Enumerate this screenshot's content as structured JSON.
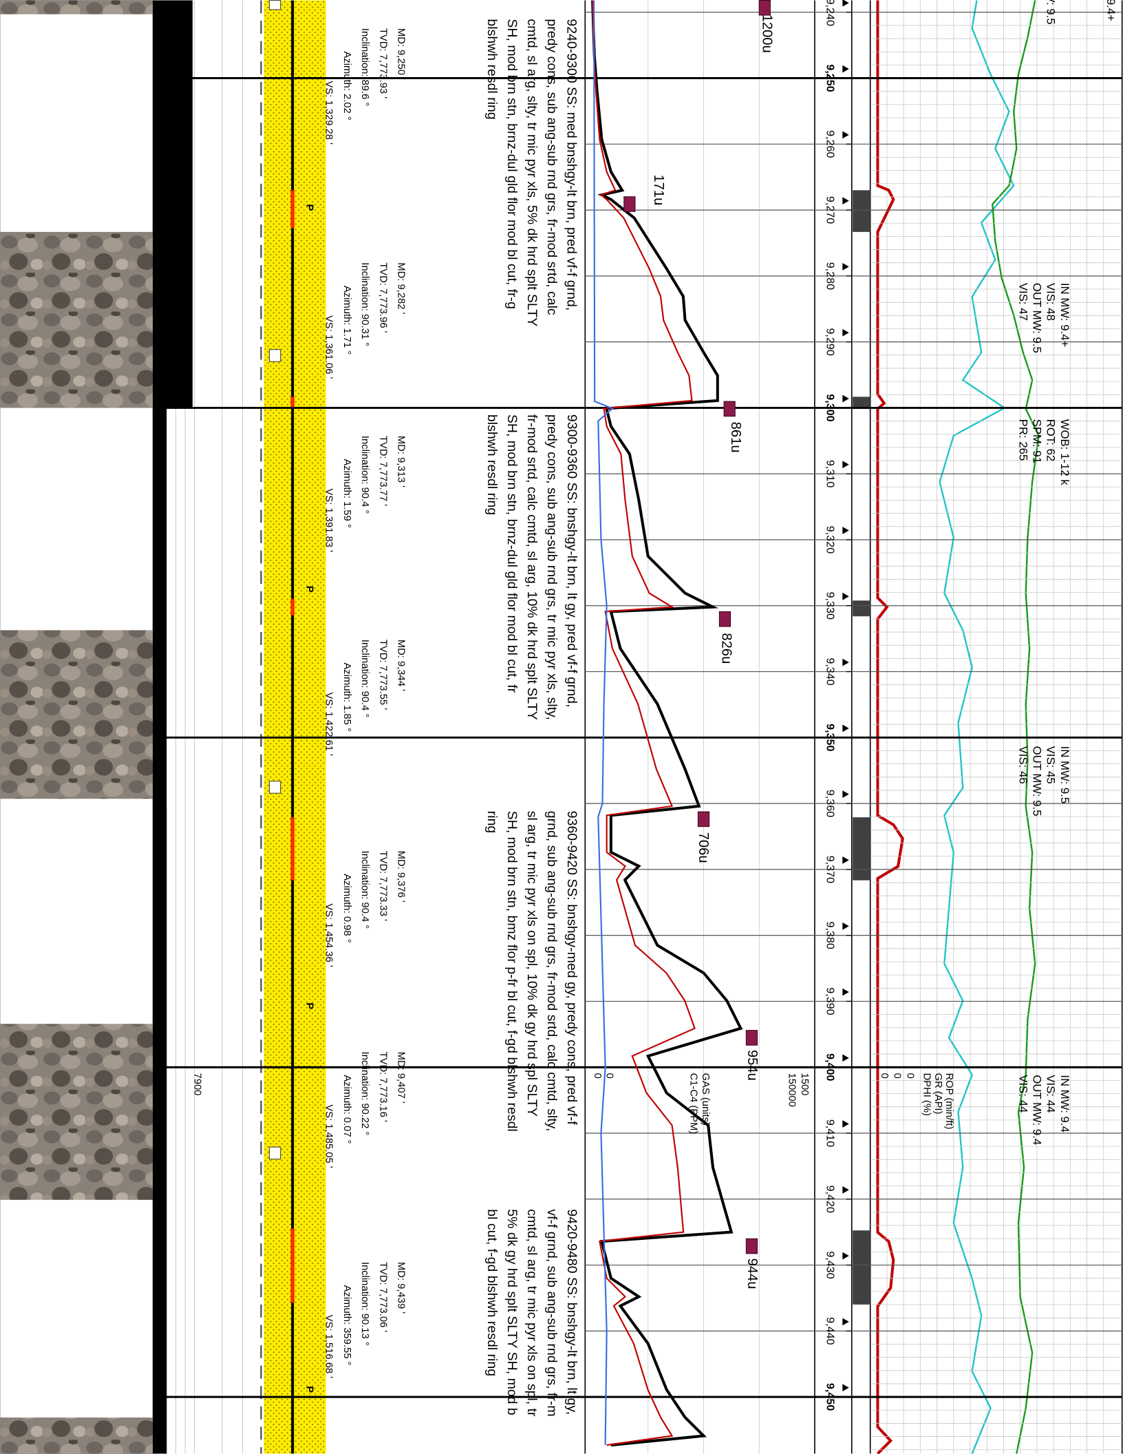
{
  "depth_track": {
    "ylim": [
      9238.2,
      9458.6
    ],
    "ticks": [
      {
        "value": 9240,
        "label": "9,240"
      },
      {
        "value": 9250,
        "label": "9,250"
      },
      {
        "value": 9260,
        "label": "9,260"
      },
      {
        "value": 9270,
        "label": "9,270"
      },
      {
        "value": 9280,
        "label": "9,280"
      },
      {
        "value": 9290,
        "label": "9,290"
      },
      {
        "value": 9300,
        "label": "9,300"
      },
      {
        "value": 9310,
        "label": "9,310"
      },
      {
        "value": 9320,
        "label": "9,320"
      },
      {
        "value": 9330,
        "label": "9,330"
      },
      {
        "value": 9340,
        "label": "9,340"
      },
      {
        "value": 9350,
        "label": "9,350"
      },
      {
        "value": 9360,
        "label": "9,360"
      },
      {
        "value": 9370,
        "label": "9,370"
      },
      {
        "value": 9380,
        "label": "9,380"
      },
      {
        "value": 9390,
        "label": "9,390"
      },
      {
        "value": 9400,
        "label": "9,400"
      },
      {
        "value": 9410,
        "label": "9,410"
      },
      {
        "value": 9420,
        "label": "9,420"
      },
      {
        "value": 9430,
        "label": "9,430"
      },
      {
        "value": 9440,
        "label": "9,440"
      },
      {
        "value": 9450,
        "label": "9,450"
      }
    ]
  },
  "core_label": "7900",
  "surveys": [
    [
      "MD: 9,250 '",
      "TVD: 7,773.93 '",
      "Inclination: 89.6 °",
      "Azimuth: 2.02 °",
      "VS: 1,329.28 '"
    ],
    [
      "MD: 9,282 '",
      "TVD: 7,773.96 '",
      "Inclination: 90.31 °",
      "Azimuth: 1.71 °",
      "VS: 1,361.06 '"
    ],
    [
      "MD: 9,313 '",
      "TVD: 7,773.77 '",
      "Inclination: 90.4 °",
      "Azimuth: 1.59 °",
      "VS: 1,391.83 '"
    ],
    [
      "MD: 9,344 '",
      "TVD: 7,773.55 '",
      "Inclination: 90.4 °",
      "Azimuth: 1.85 °",
      "VS: 1,422.61 '"
    ],
    [
      "MD: 9,376 '",
      "TVD: 7,773.33 '",
      "Inclination: 90.4 °",
      "Azimuth: 0.98 °",
      "VS: 1,454.36 '"
    ],
    [
      "MD: 9,407 '",
      "TVD: 7,773.16 '",
      "Inclination: 90.22 °",
      "Azimuth: 0.07 °",
      "VS: 1,485.05 '"
    ],
    [
      "MD: 9,439 '",
      "TVD: 7,773.06 '",
      "Inclination: 90.13 °",
      "Azimuth: 359.55 °",
      "VS: 1,516.68 '"
    ]
  ],
  "descriptions": [
    [
      "9240-9300 SS: med bnshgy-lt brn, pred vf-f grnd,",
      "predy cons, sub ang-sub rnd grs, fr-mod srtd, calc",
      "cmtd, sl arg, slty, tr mic pyr xls, 5% dk hrd splt SLTY",
      "SH, mod brn stn, brnz-dul gld flor mod bl cut, fr-g",
      "blshwh resdl ring"
    ],
    [
      "9300-9360 SS: bnshgy-lt brn, lt gy, pred vf-f grnd,",
      "predy cons, sub ang-sub rnd grs, tr mic pyr xls, slty,",
      "fr-mod srtd, calc cmtd, sl arg, 10% dk hrd splt SLTY",
      "SH, mod brn stn, brnz-dul gld flor mod bl cut, fr",
      "blshwh resdl ring"
    ],
    [
      "9360-9420 SS: bnshgy-med gy, predy cons, pred vf-f",
      "grnd, sub ang-sub rnd grs, fr-mod srtd, calc cmtd, slty,",
      "sl arg, tr mic pyr xls on spl, 10% dk gy hrd spl SLTY",
      "SH, mod brn stn, bmz flor p-fr bl cut, f-gd blshwh resdl",
      "ring"
    ],
    [
      "9420-9480 SS: bnshgy-lt brn, lt gy,",
      "vf-f grnd, sub ang-sub rnd grs, fr-m",
      "cmtd, sl arg, tr mic pyr xls on spl, tr",
      "5% dk gy hrd splt SLTY SH, mod b",
      "bl cut, f-gd blshwh resdl ring"
    ]
  ],
  "mud_reports": [
    [
      "IN MW: 9.4+",
      "VIS: 48",
      "OUT MW: 9.5",
      "VIS: 47"
    ],
    [
      "WOB: 1-12 k",
      "ROT: 62",
      "SPM: 91",
      "PR: 265"
    ],
    [
      "IN MW: 9.5",
      "VIS: 45",
      "OUT MW: 9.5",
      "VIS: 46"
    ],
    [
      "IN MW: 9.4",
      "VIS: 44",
      "OUT MW: 9.4",
      "VIS: 44"
    ]
  ],
  "mud_fragments": [
    "9.4+",
    "V: 9.5"
  ],
  "gas_track": {
    "type": "line",
    "xlim": [
      0,
      1500
    ],
    "x2lim": [
      0,
      150000
    ],
    "series": [
      {
        "name": "GAS (units)",
        "color": "#000000",
        "x": [
          9238.2,
          9246.6,
          9252.2,
          9259.3,
          9264.2,
          9267.0,
          9267.7,
          9268.4,
          9271.2,
          9278.9,
          9283.1,
          9286.7,
          9291.6,
          9295.1,
          9298.9,
          9300.1,
          9302.8,
          9307.0,
          9314.0,
          9322.5,
          9328.1,
          9330.2,
          9330.9,
          9336.5,
          9344.9,
          9354.8,
          9360.4,
          9361.8,
          9367.4,
          9369.5,
          9371.6,
          9381.5,
          9385.7,
          9389.9,
          9394.1,
          9398.3,
          9403.9,
          9408.8,
          9415.2,
          9425.0,
          9426.4,
          9432.0,
          9434.8,
          9436.2,
          9441.9,
          9448.9,
          9453.1,
          9455.9,
          9457.3
        ],
        "values": [
          0,
          13,
          33,
          65,
          130,
          209,
          65,
          130,
          294,
          522,
          639,
          652,
          783,
          881,
          881,
          98,
          130,
          261,
          326,
          391,
          652,
          848,
          130,
          196,
          457,
          652,
          750,
          130,
          130,
          326,
          228,
          457,
          783,
          946,
          1044,
          391,
          522,
          815,
          848,
          978,
          65,
          130,
          326,
          196,
          391,
          522,
          652,
          783,
          130
        ]
      },
      {
        "name": "C1-C4 (PPM)",
        "color": "#c00000",
        "axis": "x2",
        "x": [
          9238.2,
          9246.6,
          9252.2,
          9259.3,
          9264.2,
          9267.0,
          9267.7,
          9268.4,
          9271.2,
          9278.9,
          9283.1,
          9286.7,
          9291.6,
          9295.1,
          9298.9,
          9300.1,
          9302.8,
          9307.0,
          9314.0,
          9322.5,
          9328.1,
          9330.2,
          9330.9,
          9336.5,
          9344.9,
          9354.8,
          9360.4,
          9361.8,
          9367.4,
          9369.5,
          9371.6,
          9381.5,
          9385.7,
          9389.9,
          9394.1,
          9398.3,
          9403.9,
          9408.8,
          9415.2,
          9425.0,
          9426.4,
          9432.0,
          9434.8,
          9436.2,
          9441.9,
          9448.9,
          9453.1,
          9455.9,
          9457.3
        ],
        "values": [
          0,
          1000,
          2500,
          5000,
          10000,
          16000,
          6000,
          10000,
          22000,
          40000,
          48000,
          50000,
          60000,
          68000,
          70000,
          8000,
          10000,
          20000,
          23000,
          28000,
          40000,
          56000,
          9000,
          14000,
          32000,
          45000,
          56000,
          10000,
          10000,
          23000,
          17000,
          30000,
          52000,
          65000,
          72000,
          28000,
          38000,
          56000,
          60000,
          64000,
          5000,
          10000,
          23000,
          15000,
          29000,
          39000,
          48000,
          56000,
          10000
        ]
      },
      {
        "color": "#3a6fe0",
        "x": [
          9238.2,
          9299.0,
          9300.1,
          9302.0,
          9320.0,
          9330.0,
          9345.0,
          9360.0,
          9362.0,
          9400.0,
          9410.0,
          9425.0,
          9440.0,
          9457.3
        ],
        "values": [
          10,
          15,
          140,
          40,
          60,
          100,
          80,
          70,
          40,
          90,
          60,
          80,
          100,
          90
        ]
      }
    ],
    "peaks": [
      "1200u",
      "171u",
      "861u",
      "826u",
      "706u",
      "954u",
      "944u"
    ]
  },
  "right_track": {
    "legend": [
      {
        "name": "ROP (min/ft)",
        "color": "#c00000",
        "min": 0
      },
      {
        "name": "GR (API)",
        "color": "#1a9a1a",
        "min": 0
      },
      {
        "name": "DPHI (%)",
        "color": "#22c4c8",
        "min": 0
      }
    ]
  }
}
